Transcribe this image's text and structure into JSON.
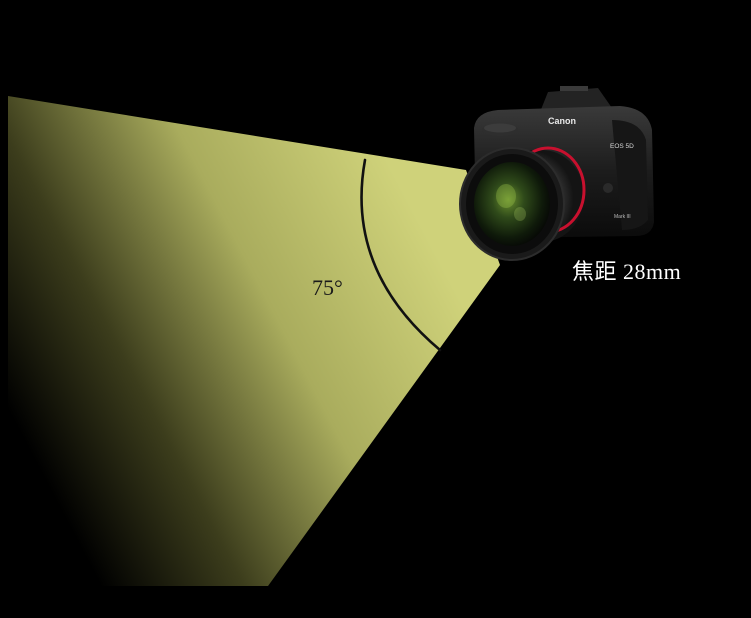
{
  "diagram": {
    "angle_label": "75°",
    "focal_label": "焦距 28mm"
  },
  "camera": {
    "brand": "Canon",
    "model": "EOS 5D",
    "mark": "Mark III",
    "icon": "dslr-camera-icon"
  },
  "colors": {
    "background": "#000000",
    "beam_light": "#cfd27a",
    "beam_dark": "#000000",
    "arc": "#111111",
    "angle_text": "#1a1a1a",
    "focal_text": "#ffffff",
    "lens_red_ring": "#c8102e"
  }
}
